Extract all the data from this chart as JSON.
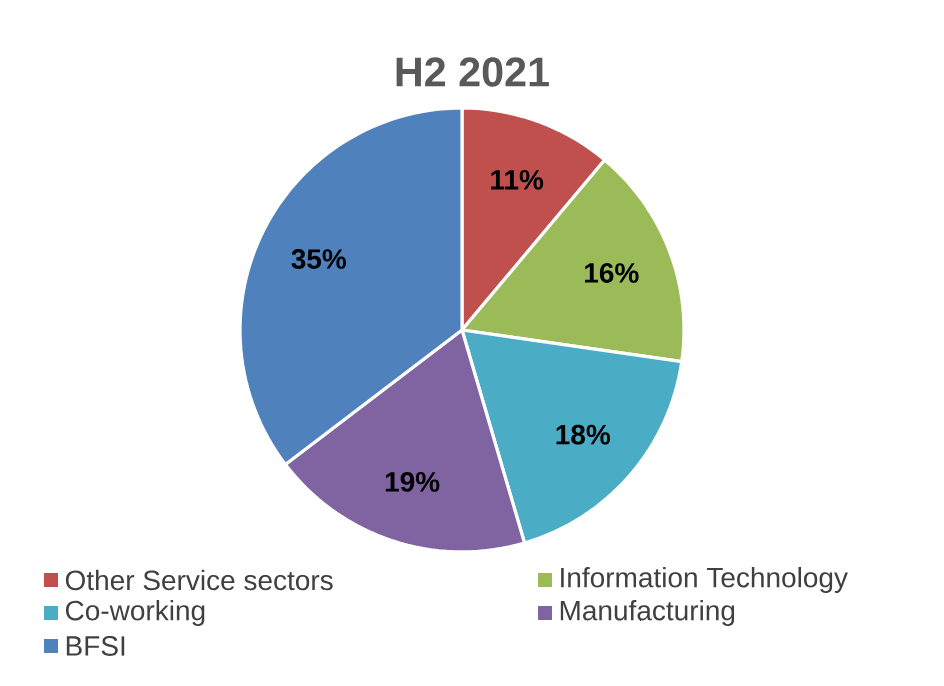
{
  "chart_data": {
    "type": "pie",
    "title": "H2 2021",
    "categories": [
      "Other Service sectors",
      "Information Technology",
      "Co-working",
      "Manufacturing",
      "BFSI"
    ],
    "values": [
      11,
      16,
      18,
      19,
      35
    ],
    "value_labels": [
      "11%",
      "16%",
      "18%",
      "19%",
      "35%"
    ],
    "colors": [
      "#c0504d",
      "#9bbb59",
      "#4bacc6",
      "#8064a2",
      "#4f81bd"
    ],
    "legend": "bottom"
  }
}
